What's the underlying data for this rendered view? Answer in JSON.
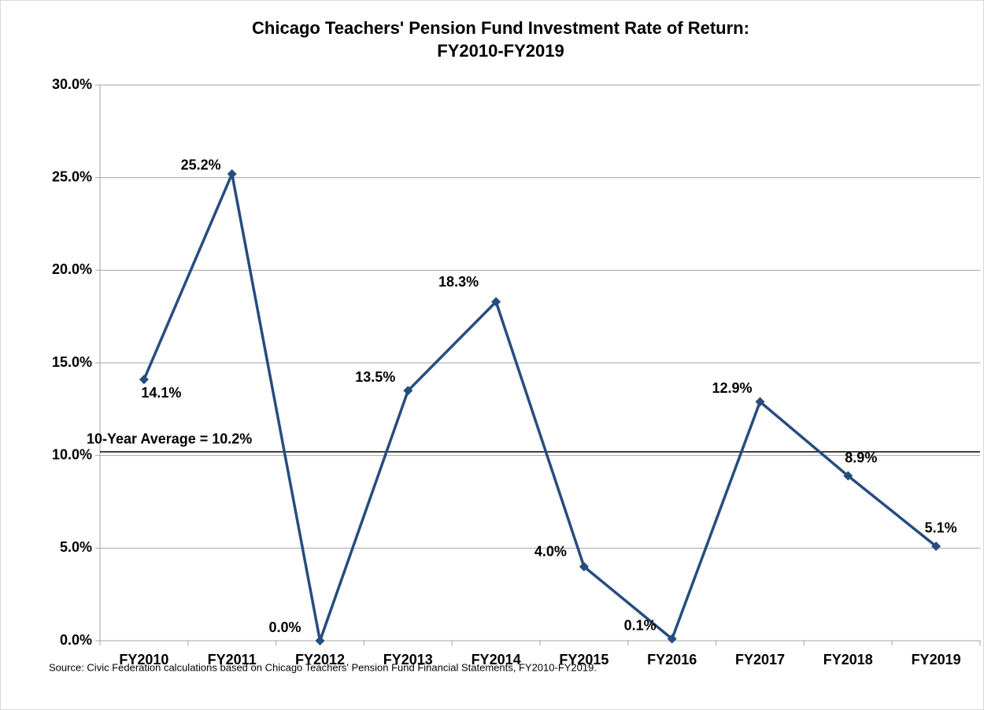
{
  "chart_data": {
    "type": "line",
    "title": "Chicago Teachers' Pension Fund Investment Rate of Return:",
    "subtitle": "FY2010-FY2019",
    "categories": [
      "FY2010",
      "FY2011",
      "FY2012",
      "FY2013",
      "FY2014",
      "FY2015",
      "FY2016",
      "FY2017",
      "FY2018",
      "FY2019"
    ],
    "series": [
      {
        "name": "Investment Rate of Return",
        "color": "#264d7e",
        "values": [
          14.1,
          25.2,
          0.0,
          13.5,
          18.3,
          4.0,
          0.1,
          12.9,
          8.9,
          5.1
        ],
        "value_labels": [
          "14.1%",
          "25.2%",
          "0.0%",
          "13.5%",
          "18.3%",
          "4.0%",
          "0.1%",
          "12.9%",
          "8.9%",
          "5.1%"
        ]
      }
    ],
    "ylim": [
      0,
      30
    ],
    "yticks": [
      {
        "value": 0,
        "label": "0.0%"
      },
      {
        "value": 5,
        "label": "5.0%"
      },
      {
        "value": 10,
        "label": "10.0%"
      },
      {
        "value": 15,
        "label": "15.0%"
      },
      {
        "value": 20,
        "label": "20.0%"
      },
      {
        "value": 25,
        "label": "25.0%"
      },
      {
        "value": 30,
        "label": "30.0%"
      }
    ],
    "grid": true,
    "reference_line": {
      "value": 10.2,
      "label": "10-Year Average = 10.2%"
    },
    "source": "Source: Civic Federation calculations based on Chicago Teachers' Pension Fund Financial Statements, FY2010-FY2019."
  }
}
